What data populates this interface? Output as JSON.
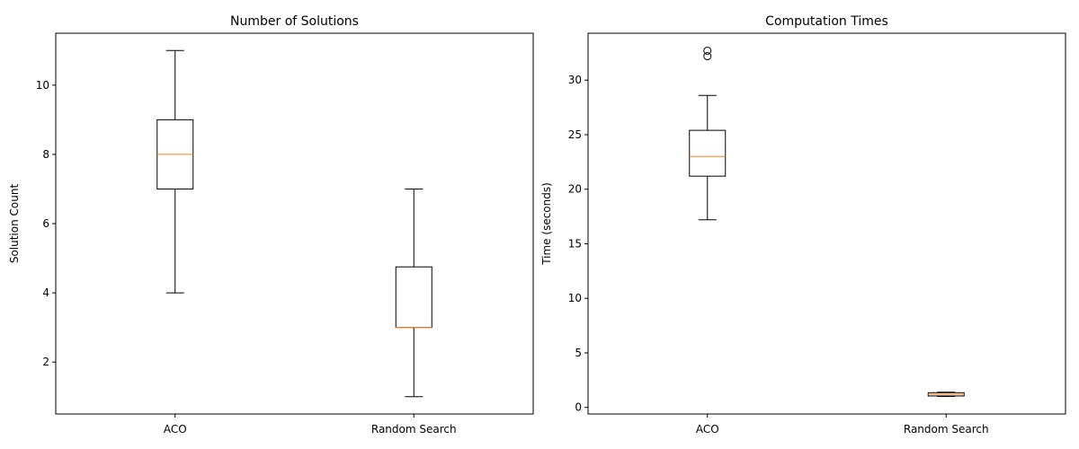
{
  "chart_data": [
    {
      "type": "box",
      "title": "Number of Solutions",
      "xlabel": "",
      "ylabel": "Solution Count",
      "ylim": [
        0.5,
        11.5
      ],
      "yticks": [
        2,
        4,
        6,
        8,
        10
      ],
      "categories": [
        "ACO",
        "Random Search"
      ],
      "boxes": [
        {
          "whislo": 4,
          "q1": 7,
          "med": 8,
          "q3": 9,
          "whishi": 11,
          "fliers": []
        },
        {
          "whislo": 1,
          "q1": 3,
          "med": 3,
          "q3": 4.75,
          "whishi": 7,
          "fliers": []
        }
      ],
      "box_color": "#000000",
      "median_color": "#ff7f0e",
      "grid": false
    },
    {
      "type": "box",
      "title": "Computation Times",
      "xlabel": "",
      "ylabel": "Time (seconds)",
      "ylim": [
        -0.6,
        34.3
      ],
      "yticks": [
        0,
        5,
        10,
        15,
        20,
        25,
        30
      ],
      "categories": [
        "ACO",
        "Random Search"
      ],
      "boxes": [
        {
          "whislo": 17.2,
          "q1": 21.2,
          "med": 23.0,
          "q3": 25.4,
          "whishi": 28.6,
          "fliers": [
            32.2,
            32.7
          ]
        },
        {
          "whislo": 1.0,
          "q1": 1.05,
          "med": 1.2,
          "q3": 1.35,
          "whishi": 1.4,
          "fliers": []
        }
      ],
      "box_color": "#000000",
      "median_color": "#ff7f0e",
      "grid": false
    }
  ]
}
